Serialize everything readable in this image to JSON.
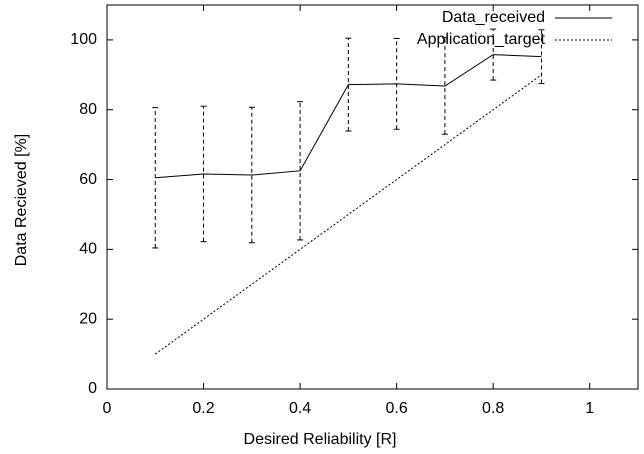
{
  "chart_data": {
    "type": "line",
    "xlabel": "Desired Reliability [R]",
    "ylabel": "Data Recieved [%]",
    "x": [
      0.1,
      0.2,
      0.3,
      0.4,
      0.5,
      0.6,
      0.7,
      0.8,
      0.9
    ],
    "series": [
      {
        "name": "Data_received",
        "color": "#000000",
        "dash": "solid",
        "values": [
          60.5,
          61.6,
          61.3,
          62.5,
          87.2,
          87.4,
          86.8,
          95.8,
          95.2
        ],
        "errors": [
          20.1,
          19.4,
          19.4,
          19.8,
          13.3,
          13.0,
          13.8,
          7.3,
          7.7
        ]
      },
      {
        "name": "Application_target",
        "color": "#000000",
        "dash": "dotted",
        "values": [
          10,
          20,
          30,
          40,
          50,
          60,
          70,
          80,
          90
        ]
      }
    ],
    "xlim": [
      0,
      1.1
    ],
    "xticks": [
      0,
      0.2,
      0.4,
      0.6,
      0.8,
      1
    ],
    "ylim": [
      0,
      110
    ],
    "yticks": [
      0,
      20,
      40,
      60,
      80,
      100
    ],
    "legend": "top-right"
  }
}
